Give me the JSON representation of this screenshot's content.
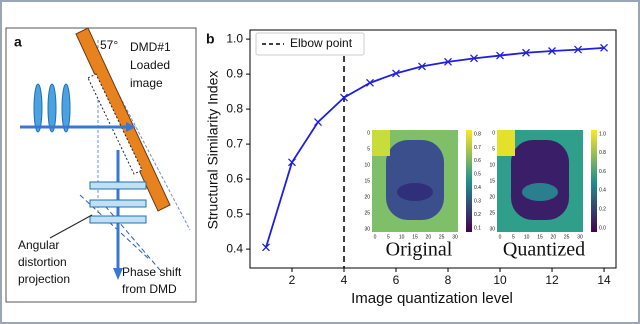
{
  "diagram": {
    "panel_label": "a",
    "angle_label": "57°",
    "dmd_label": [
      "DMD#1",
      "Loaded",
      "image"
    ],
    "distortion_label": [
      "Angular",
      "distortion",
      "projection"
    ],
    "phase_label": [
      "Phase shift",
      "from DMD"
    ]
  },
  "chart_data": {
    "type": "line",
    "panel_label": "b",
    "x_label": "Image quantization level",
    "y_label": "Structural Similarity Index",
    "x": [
      1,
      2,
      3,
      4,
      5,
      6,
      7,
      8,
      9,
      10,
      11,
      12,
      13,
      14
    ],
    "series": [
      {
        "name": null,
        "color": "#1f1fe0",
        "values": [
          0.405,
          0.648,
          0.763,
          0.833,
          0.875,
          0.902,
          0.922,
          0.935,
          0.945,
          0.953,
          0.961,
          0.966,
          0.97,
          0.975
        ]
      }
    ],
    "xlim": [
      0.385,
      14.46
    ],
    "ylim": [
      0.346,
      1.026
    ],
    "xticks": [
      2,
      4,
      6,
      8,
      10,
      12,
      14
    ],
    "yticks": [
      0.4,
      0.5,
      0.6,
      0.7,
      0.8,
      0.9,
      {
        "value": 1,
        "label": "1.0"
      }
    ],
    "elbow": {
      "x": 4,
      "label": "Elbow point"
    },
    "insets": [
      {
        "label": "Original",
        "axis_labels": [
          "0",
          "5",
          "10",
          "15",
          "20",
          "25",
          "30"
        ],
        "colorbar_labels": [
          "0.8",
          "0.7",
          "0.6",
          "0.5",
          "0.4",
          "0.3",
          "0.2",
          "0.1"
        ]
      },
      {
        "label": "Quantized",
        "axis_labels": [
          "0",
          "5",
          "10",
          "15",
          "20",
          "25",
          "30"
        ],
        "colorbar_labels": [
          "1.0",
          "0.8",
          "0.6",
          "0.4",
          "0.2",
          "0.0"
        ]
      }
    ]
  }
}
